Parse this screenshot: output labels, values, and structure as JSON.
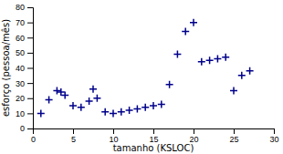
{
  "chart_data": {
    "type": "scatter",
    "x": [
      1,
      2,
      3,
      3.5,
      4,
      5,
      6,
      7,
      7.5,
      8,
      9,
      10,
      11,
      12,
      13,
      14,
      15,
      16,
      17,
      18,
      19,
      20,
      21,
      22,
      23,
      24,
      25,
      26,
      27
    ],
    "y": [
      10,
      19,
      25,
      24,
      22,
      15,
      14,
      18,
      26,
      20,
      11,
      10,
      11,
      12,
      13,
      14,
      15,
      16,
      29,
      49,
      64,
      70,
      44,
      45,
      46,
      47,
      25,
      35,
      38
    ],
    "xlabel": "tamanho (KSLOC)",
    "ylabel": "esforço (pessoa/mês)",
    "xlim": [
      0,
      30
    ],
    "ylim": [
      0,
      80
    ],
    "xticks": [
      0,
      5,
      10,
      15,
      20,
      25,
      30
    ],
    "yticks": [
      0,
      10,
      20,
      30,
      40,
      50,
      60,
      70,
      80
    ],
    "color": "#00008B",
    "marker": "plus"
  }
}
